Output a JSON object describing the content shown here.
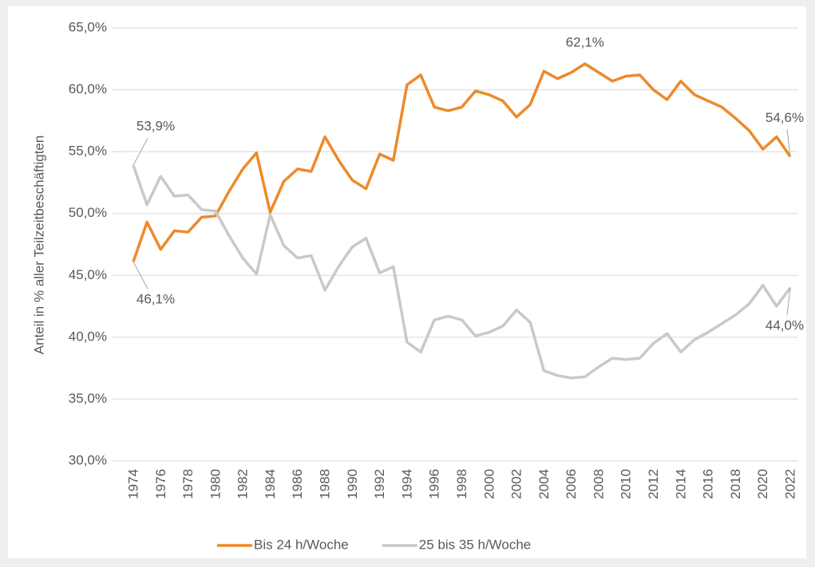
{
  "chart_data": {
    "type": "line",
    "y_label": "Anteil in % aller Teilzeitbeschäftigten",
    "categories": [
      "1974",
      null,
      "1976",
      null,
      "1978",
      null,
      "1980",
      null,
      "1982",
      null,
      "1984",
      null,
      "1986",
      null,
      "1988",
      null,
      "1990",
      null,
      "1992",
      null,
      "1994",
      null,
      "1996",
      null,
      "1998",
      null,
      "2000",
      null,
      "2002",
      null,
      "2004",
      null,
      "2006",
      null,
      "2008",
      null,
      "2010",
      null,
      "2012",
      null,
      "2014",
      null,
      "2016",
      null,
      "2018",
      null,
      "2020",
      null,
      "2022"
    ],
    "series": [
      {
        "name": "Bis 24 h/Woche",
        "color": "#ed8a2a",
        "values": [
          46.1,
          49.3,
          47.1,
          48.6,
          48.5,
          49.7,
          49.8,
          51.8,
          53.6,
          54.9,
          50.1,
          52.6,
          53.6,
          53.4,
          56.2,
          54.3,
          52.7,
          52.0,
          54.8,
          54.3,
          60.4,
          61.2,
          58.6,
          58.3,
          58.6,
          59.9,
          59.6,
          59.1,
          57.8,
          58.8,
          61.5,
          60.9,
          61.4,
          62.1,
          61.4,
          60.7,
          61.1,
          61.2,
          60.0,
          59.2,
          60.7,
          59.6,
          59.1,
          58.6,
          57.7,
          56.7,
          55.2,
          56.2,
          54.6
        ],
        "value_labels": [
          "46,1%",
          null,
          null,
          null,
          null,
          null,
          null,
          null,
          null,
          null,
          null,
          null,
          null,
          null,
          null,
          null,
          null,
          null,
          null,
          null,
          null,
          null,
          null,
          null,
          null,
          null,
          null,
          null,
          null,
          null,
          null,
          null,
          null,
          "62,1%",
          null,
          null,
          null,
          null,
          null,
          null,
          null,
          null,
          null,
          null,
          null,
          null,
          null,
          null,
          "54,6%"
        ]
      },
      {
        "name": "25 bis 35 h/Woche",
        "color": "#c9c9c9",
        "values": [
          53.9,
          50.7,
          53.0,
          51.4,
          51.5,
          50.3,
          50.2,
          48.2,
          46.4,
          45.1,
          49.9,
          47.4,
          46.4,
          46.6,
          43.8,
          45.7,
          47.3,
          48.0,
          45.2,
          45.7,
          39.6,
          38.8,
          41.4,
          41.7,
          41.4,
          40.1,
          40.4,
          40.9,
          42.2,
          41.2,
          37.3,
          36.9,
          36.7,
          36.8,
          37.6,
          38.3,
          38.2,
          38.3,
          39.5,
          40.3,
          38.8,
          39.8,
          40.4,
          41.1,
          41.8,
          42.7,
          44.2,
          42.5,
          44.0
        ],
        "value_labels": [
          "53,9%",
          null,
          null,
          null,
          null,
          null,
          null,
          null,
          null,
          null,
          null,
          null,
          null,
          null,
          null,
          null,
          null,
          null,
          null,
          null,
          null,
          null,
          null,
          null,
          null,
          null,
          null,
          null,
          null,
          null,
          null,
          null,
          null,
          null,
          null,
          null,
          null,
          null,
          null,
          null,
          null,
          null,
          null,
          null,
          null,
          null,
          null,
          null,
          "44,0%"
        ]
      }
    ],
    "ylim": [
      30,
      65
    ],
    "yticks": [
      {
        "value": 30,
        "label": "30,0%"
      },
      {
        "value": 35,
        "label": "35,0%"
      },
      {
        "value": 40,
        "label": "40,0%"
      },
      {
        "value": 45,
        "label": "45,0%"
      },
      {
        "value": 50,
        "label": "50,0%"
      },
      {
        "value": 55,
        "label": "55,0%"
      },
      {
        "value": 60,
        "label": "60,0%"
      },
      {
        "value": 65,
        "label": "65,0%"
      }
    ],
    "grid": true
  }
}
